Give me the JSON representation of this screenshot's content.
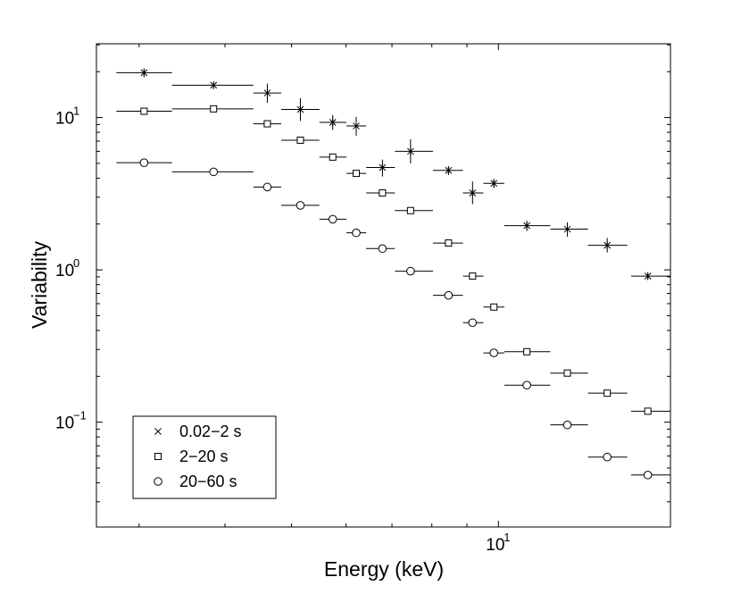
{
  "chart_data": {
    "type": "scatter",
    "title": "",
    "xlabel": "Energy (keV)",
    "ylabel": "Variability",
    "xscale": "log",
    "yscale": "log",
    "xlim": [
      2.6,
      17.8
    ],
    "ylim": [
      0.0205,
      30.5
    ],
    "grid": false,
    "legend_position": "bottom-left",
    "x_ticks": [
      {
        "value": 10,
        "base": "10",
        "exp": "1"
      }
    ],
    "y_ticks": [
      {
        "value": 10,
        "base": "10",
        "exp": "1"
      },
      {
        "value": 1,
        "base": "10",
        "exp": "0"
      },
      {
        "value": 0.1,
        "base": "10",
        "exp": "−1"
      }
    ],
    "series": [
      {
        "name": "0.02−2 s",
        "marker": "x-star",
        "points": [
          {
            "x": 3.05,
            "xlo": 2.78,
            "xhi": 3.35,
            "y": 19.7,
            "ylo": 18.4,
            "yhi": 21.0
          },
          {
            "x": 3.85,
            "xlo": 3.35,
            "xhi": 4.4,
            "y": 16.3,
            "ylo": 15.8,
            "yhi": 16.8
          },
          {
            "x": 4.61,
            "xlo": 4.4,
            "xhi": 4.83,
            "y": 14.5,
            "ylo": 12.5,
            "yhi": 16.7
          },
          {
            "x": 5.15,
            "xlo": 4.83,
            "xhi": 5.49,
            "y": 11.3,
            "ylo": 9.5,
            "yhi": 13.4
          },
          {
            "x": 5.74,
            "xlo": 5.49,
            "xhi": 6.01,
            "y": 9.3,
            "ylo": 8.3,
            "yhi": 10.4
          },
          {
            "x": 6.21,
            "xlo": 6.01,
            "xhi": 6.42,
            "y": 8.8,
            "ylo": 7.6,
            "yhi": 10.1
          },
          {
            "x": 6.78,
            "xlo": 6.42,
            "xhi": 7.07,
            "y": 4.7,
            "ylo": 4.1,
            "yhi": 5.3
          },
          {
            "x": 7.45,
            "xlo": 7.07,
            "xhi": 8.03,
            "y": 6.0,
            "ylo": 5.0,
            "yhi": 7.2
          },
          {
            "x": 8.46,
            "xlo": 8.03,
            "xhi": 8.88,
            "y": 4.5,
            "ylo": 4.2,
            "yhi": 4.8
          },
          {
            "x": 9.17,
            "xlo": 8.88,
            "xhi": 9.51,
            "y": 3.2,
            "ylo": 2.7,
            "yhi": 3.8
          },
          {
            "x": 9.85,
            "xlo": 9.51,
            "xhi": 10.2,
            "y": 3.7,
            "ylo": 3.45,
            "yhi": 3.95
          },
          {
            "x": 11.0,
            "xlo": 10.2,
            "xhi": 11.9,
            "y": 1.95,
            "ylo": 1.8,
            "yhi": 2.1
          },
          {
            "x": 12.6,
            "xlo": 11.9,
            "xhi": 13.5,
            "y": 1.85,
            "ylo": 1.65,
            "yhi": 2.05
          },
          {
            "x": 14.4,
            "xlo": 13.5,
            "xhi": 15.4,
            "y": 1.45,
            "ylo": 1.3,
            "yhi": 1.62
          },
          {
            "x": 16.5,
            "xlo": 15.6,
            "xhi": 17.8,
            "y": 0.91,
            "ylo": 0.87,
            "yhi": 0.95
          }
        ]
      },
      {
        "name": "2−20 s",
        "marker": "square",
        "points": [
          {
            "x": 3.05,
            "xlo": 2.78,
            "xhi": 3.35,
            "y": 11.0
          },
          {
            "x": 3.85,
            "xlo": 3.35,
            "xhi": 4.4,
            "y": 11.4
          },
          {
            "x": 4.61,
            "xlo": 4.4,
            "xhi": 4.83,
            "y": 9.1
          },
          {
            "x": 5.15,
            "xlo": 4.83,
            "xhi": 5.49,
            "y": 7.1
          },
          {
            "x": 5.74,
            "xlo": 5.49,
            "xhi": 6.01,
            "y": 5.5
          },
          {
            "x": 6.21,
            "xlo": 6.01,
            "xhi": 6.42,
            "y": 4.3
          },
          {
            "x": 6.78,
            "xlo": 6.42,
            "xhi": 7.07,
            "y": 3.2
          },
          {
            "x": 7.45,
            "xlo": 7.07,
            "xhi": 8.03,
            "y": 2.45
          },
          {
            "x": 8.46,
            "xlo": 8.03,
            "xhi": 8.88,
            "y": 1.5
          },
          {
            "x": 9.17,
            "xlo": 8.88,
            "xhi": 9.51,
            "y": 0.91
          },
          {
            "x": 9.85,
            "xlo": 9.51,
            "xhi": 10.2,
            "y": 0.57
          },
          {
            "x": 11.0,
            "xlo": 10.2,
            "xhi": 11.9,
            "y": 0.29
          },
          {
            "x": 12.6,
            "xlo": 11.9,
            "xhi": 13.5,
            "y": 0.21
          },
          {
            "x": 14.4,
            "xlo": 13.5,
            "xhi": 15.4,
            "y": 0.155
          },
          {
            "x": 16.5,
            "xlo": 15.6,
            "xhi": 17.8,
            "y": 0.118
          }
        ]
      },
      {
        "name": "20−60 s",
        "marker": "circle",
        "points": [
          {
            "x": 3.05,
            "xlo": 2.78,
            "xhi": 3.35,
            "y": 5.05
          },
          {
            "x": 3.85,
            "xlo": 3.35,
            "xhi": 4.4,
            "y": 4.4
          },
          {
            "x": 4.61,
            "xlo": 4.4,
            "xhi": 4.83,
            "y": 3.5
          },
          {
            "x": 5.15,
            "xlo": 4.83,
            "xhi": 5.49,
            "y": 2.65
          },
          {
            "x": 5.74,
            "xlo": 5.49,
            "xhi": 6.01,
            "y": 2.15
          },
          {
            "x": 6.21,
            "xlo": 6.01,
            "xhi": 6.42,
            "y": 1.75
          },
          {
            "x": 6.78,
            "xlo": 6.42,
            "xhi": 7.07,
            "y": 1.38
          },
          {
            "x": 7.45,
            "xlo": 7.07,
            "xhi": 8.03,
            "y": 0.98
          },
          {
            "x": 8.46,
            "xlo": 8.03,
            "xhi": 8.88,
            "y": 0.68
          },
          {
            "x": 9.17,
            "xlo": 8.88,
            "xhi": 9.51,
            "y": 0.45
          },
          {
            "x": 9.85,
            "xlo": 9.51,
            "xhi": 10.2,
            "y": 0.285
          },
          {
            "x": 11.0,
            "xlo": 10.2,
            "xhi": 11.9,
            "y": 0.175
          },
          {
            "x": 12.6,
            "xlo": 11.9,
            "xhi": 13.5,
            "y": 0.096
          },
          {
            "x": 14.4,
            "xlo": 13.5,
            "xhi": 15.4,
            "y": 0.059
          },
          {
            "x": 16.5,
            "xlo": 15.6,
            "xhi": 17.8,
            "y": 0.045
          }
        ]
      }
    ]
  },
  "colors": {
    "ink": "#000000",
    "background": "#ffffff"
  }
}
